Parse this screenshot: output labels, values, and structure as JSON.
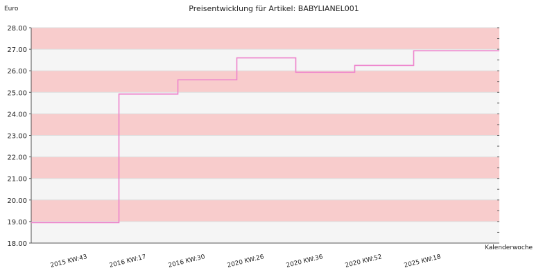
{
  "chart_data": {
    "type": "line",
    "step": true,
    "title": "Preisentwicklung für Artikel: BABYLIANEL001",
    "ylabel": "Euro",
    "xlabel": "Kalenderwoche",
    "ylim": [
      18,
      28
    ],
    "yticks": [
      "18.00",
      "19.00",
      "20.00",
      "21.00",
      "22.00",
      "23.00",
      "24.00",
      "25.00",
      "26.00",
      "27.00",
      "28.00"
    ],
    "categories": [
      "2015 KW:43",
      "2016 KW:17",
      "2016 KW:30",
      "2020 KW:26",
      "2020 KW:36",
      "2020 KW:52",
      "2025 KW:18"
    ],
    "series": [
      {
        "values": [
          18.95,
          24.92,
          25.58,
          26.6,
          25.93,
          26.25,
          26.93
        ]
      }
    ],
    "grid": true,
    "colors": {
      "line": "#ee82cc",
      "band_odd": "#f8cccc",
      "band_even": "#f5f5f5",
      "gridline": "#dddddd"
    }
  }
}
